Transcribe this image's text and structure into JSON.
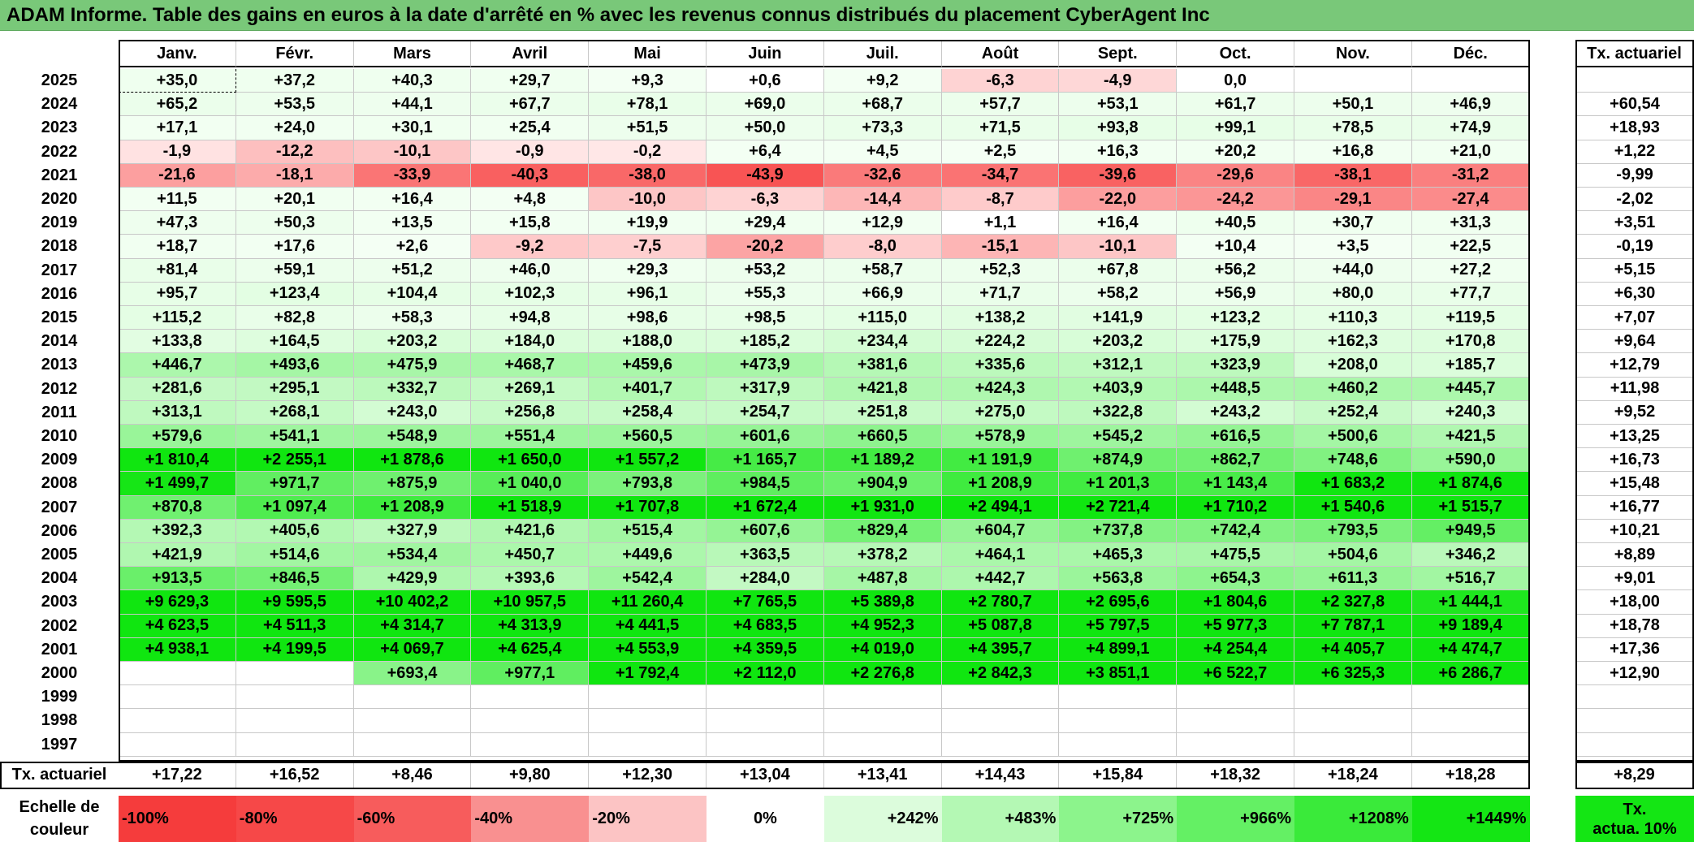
{
  "title": "ADAM Informe. Table des gains en euros à la date d'arrêté en % avec les revenus connus distribués du placement CyberAgent Inc",
  "chart_data": {
    "type": "table",
    "columns": [
      "Janv.",
      "Févr.",
      "Mars",
      "Avril",
      "Mai",
      "Juin",
      "Juil.",
      "Août",
      "Sept.",
      "Oct.",
      "Nov.",
      "Déc."
    ],
    "annual_header": "Tx. actuariel",
    "rows": [
      {
        "year": "2025",
        "values": [
          "+35,0",
          "+37,2",
          "+40,3",
          "+29,7",
          "+9,3",
          "+0,6",
          "+9,2",
          "-6,3",
          "-4,9",
          "0,0",
          "",
          ""
        ],
        "annual": ""
      },
      {
        "year": "2024",
        "values": [
          "+65,2",
          "+53,5",
          "+44,1",
          "+67,7",
          "+78,1",
          "+69,0",
          "+68,7",
          "+57,7",
          "+53,1",
          "+61,7",
          "+50,1",
          "+46,9"
        ],
        "annual": "+60,54"
      },
      {
        "year": "2023",
        "values": [
          "+17,1",
          "+24,0",
          "+30,1",
          "+25,4",
          "+51,5",
          "+50,0",
          "+73,3",
          "+71,5",
          "+93,8",
          "+99,1",
          "+78,5",
          "+74,9"
        ],
        "annual": "+18,93"
      },
      {
        "year": "2022",
        "values": [
          "-1,9",
          "-12,2",
          "-10,1",
          "-0,9",
          "-0,2",
          "+6,4",
          "+4,5",
          "+2,5",
          "+16,3",
          "+20,2",
          "+16,8",
          "+21,0"
        ],
        "annual": "+1,22"
      },
      {
        "year": "2021",
        "values": [
          "-21,6",
          "-18,1",
          "-33,9",
          "-40,3",
          "-38,0",
          "-43,9",
          "-32,6",
          "-34,7",
          "-39,6",
          "-29,6",
          "-38,1",
          "-31,2"
        ],
        "annual": "-9,99"
      },
      {
        "year": "2020",
        "values": [
          "+11,5",
          "+20,1",
          "+16,4",
          "+4,8",
          "-10,0",
          "-6,3",
          "-14,4",
          "-8,7",
          "-22,0",
          "-24,2",
          "-29,1",
          "-27,4"
        ],
        "annual": "-2,02"
      },
      {
        "year": "2019",
        "values": [
          "+47,3",
          "+50,3",
          "+13,5",
          "+15,8",
          "+19,9",
          "+29,4",
          "+12,9",
          "+1,1",
          "+16,4",
          "+40,5",
          "+30,7",
          "+31,3"
        ],
        "annual": "+3,51"
      },
      {
        "year": "2018",
        "values": [
          "+18,7",
          "+17,6",
          "+2,6",
          "-9,2",
          "-7,5",
          "-20,2",
          "-8,0",
          "-15,1",
          "-10,1",
          "+10,4",
          "+3,5",
          "+22,5"
        ],
        "annual": "-0,19"
      },
      {
        "year": "2017",
        "values": [
          "+81,4",
          "+59,1",
          "+51,2",
          "+46,0",
          "+29,3",
          "+53,2",
          "+58,7",
          "+52,3",
          "+67,8",
          "+56,2",
          "+44,0",
          "+27,2"
        ],
        "annual": "+5,15"
      },
      {
        "year": "2016",
        "values": [
          "+95,7",
          "+123,4",
          "+104,4",
          "+102,3",
          "+96,1",
          "+55,3",
          "+66,9",
          "+71,7",
          "+58,2",
          "+56,9",
          "+80,0",
          "+77,7"
        ],
        "annual": "+6,30"
      },
      {
        "year": "2015",
        "values": [
          "+115,2",
          "+82,8",
          "+58,3",
          "+94,8",
          "+98,6",
          "+98,5",
          "+115,0",
          "+138,2",
          "+141,9",
          "+123,2",
          "+110,3",
          "+119,5"
        ],
        "annual": "+7,07"
      },
      {
        "year": "2014",
        "values": [
          "+133,8",
          "+164,5",
          "+203,2",
          "+184,0",
          "+188,0",
          "+185,2",
          "+234,4",
          "+224,2",
          "+203,2",
          "+175,9",
          "+162,3",
          "+170,8"
        ],
        "annual": "+9,64"
      },
      {
        "year": "2013",
        "values": [
          "+446,7",
          "+493,6",
          "+475,9",
          "+468,7",
          "+459,6",
          "+473,9",
          "+381,6",
          "+335,6",
          "+312,1",
          "+323,9",
          "+208,0",
          "+185,7"
        ],
        "annual": "+12,79"
      },
      {
        "year": "2012",
        "values": [
          "+281,6",
          "+295,1",
          "+332,7",
          "+269,1",
          "+401,7",
          "+317,9",
          "+421,8",
          "+424,3",
          "+403,9",
          "+448,5",
          "+460,2",
          "+445,7"
        ],
        "annual": "+11,98"
      },
      {
        "year": "2011",
        "values": [
          "+313,1",
          "+268,1",
          "+243,0",
          "+256,8",
          "+258,4",
          "+254,7",
          "+251,8",
          "+275,0",
          "+322,8",
          "+243,2",
          "+252,4",
          "+240,3"
        ],
        "annual": "+9,52"
      },
      {
        "year": "2010",
        "values": [
          "+579,6",
          "+541,1",
          "+548,9",
          "+551,4",
          "+560,5",
          "+601,6",
          "+660,5",
          "+578,9",
          "+545,2",
          "+616,5",
          "+500,6",
          "+421,5"
        ],
        "annual": "+13,25"
      },
      {
        "year": "2009",
        "values": [
          "+1 810,4",
          "+2 255,1",
          "+1 878,6",
          "+1 650,0",
          "+1 557,2",
          "+1 165,7",
          "+1 189,2",
          "+1 191,9",
          "+874,9",
          "+862,7",
          "+748,6",
          "+590,0"
        ],
        "annual": "+16,73"
      },
      {
        "year": "2008",
        "values": [
          "+1 499,7",
          "+971,7",
          "+875,9",
          "+1 040,0",
          "+793,8",
          "+984,5",
          "+904,9",
          "+1 208,9",
          "+1 201,3",
          "+1 143,4",
          "+1 683,2",
          "+1 874,6"
        ],
        "annual": "+15,48"
      },
      {
        "year": "2007",
        "values": [
          "+870,8",
          "+1 097,4",
          "+1 208,9",
          "+1 518,9",
          "+1 707,8",
          "+1 672,4",
          "+1 931,0",
          "+2 494,1",
          "+2 721,4",
          "+1 710,2",
          "+1 540,6",
          "+1 515,7"
        ],
        "annual": "+16,77"
      },
      {
        "year": "2006",
        "values": [
          "+392,3",
          "+405,6",
          "+327,9",
          "+421,6",
          "+515,4",
          "+607,6",
          "+829,4",
          "+604,7",
          "+737,8",
          "+742,4",
          "+793,5",
          "+949,5"
        ],
        "annual": "+10,21"
      },
      {
        "year": "2005",
        "values": [
          "+421,9",
          "+514,6",
          "+534,4",
          "+450,7",
          "+449,6",
          "+363,5",
          "+378,2",
          "+464,1",
          "+465,3",
          "+475,5",
          "+504,6",
          "+346,2"
        ],
        "annual": "+8,89"
      },
      {
        "year": "2004",
        "values": [
          "+913,5",
          "+846,5",
          "+429,9",
          "+393,6",
          "+542,4",
          "+284,0",
          "+487,8",
          "+442,7",
          "+563,8",
          "+654,3",
          "+611,3",
          "+516,7"
        ],
        "annual": "+9,01"
      },
      {
        "year": "2003",
        "values": [
          "+9 629,3",
          "+9 595,5",
          "+10 402,2",
          "+10 957,5",
          "+11 260,4",
          "+7 765,5",
          "+5 389,8",
          "+2 780,7",
          "+2 695,6",
          "+1 804,6",
          "+2 327,8",
          "+1 444,1"
        ],
        "annual": "+18,00"
      },
      {
        "year": "2002",
        "values": [
          "+4 623,5",
          "+4 511,3",
          "+4 314,7",
          "+4 313,9",
          "+4 441,5",
          "+4 683,5",
          "+4 952,3",
          "+5 087,8",
          "+5 797,5",
          "+5 977,3",
          "+7 787,1",
          "+9 189,4"
        ],
        "annual": "+18,78"
      },
      {
        "year": "2001",
        "values": [
          "+4 938,1",
          "+4 199,5",
          "+4 069,7",
          "+4 625,4",
          "+4 553,9",
          "+4 359,5",
          "+4 019,0",
          "+4 395,7",
          "+4 899,1",
          "+4 254,4",
          "+4 405,7",
          "+4 474,7"
        ],
        "annual": "+17,36"
      },
      {
        "year": "2000",
        "values": [
          "",
          "",
          "+693,4",
          "+977,1",
          "+1 792,4",
          "+2 112,0",
          "+2 276,8",
          "+2 842,3",
          "+3 851,1",
          "+6 522,7",
          "+6 325,3",
          "+6 286,7"
        ],
        "annual": "+12,90"
      },
      {
        "year": "1999",
        "values": [
          "",
          "",
          "",
          "",
          "",
          "",
          "",
          "",
          "",
          "",
          "",
          ""
        ],
        "annual": ""
      },
      {
        "year": "1998",
        "values": [
          "",
          "",
          "",
          "",
          "",
          "",
          "",
          "",
          "",
          "",
          "",
          ""
        ],
        "annual": ""
      },
      {
        "year": "1997",
        "values": [
          "",
          "",
          "",
          "",
          "",
          "",
          "",
          "",
          "",
          "",
          "",
          ""
        ],
        "annual": ""
      }
    ],
    "footer": {
      "label": "Tx. actuariel",
      "values": [
        "+17,22",
        "+16,52",
        "+8,46",
        "+9,80",
        "+12,30",
        "+13,04",
        "+13,41",
        "+14,43",
        "+15,84",
        "+18,32",
        "+18,24",
        "+18,28"
      ],
      "annual": "+8,29"
    },
    "legend": {
      "label_line1": "Echelle de",
      "label_line2": "couleur",
      "items": [
        {
          "text": "-100%",
          "value": -100,
          "color": "#f53c3c",
          "align": "left"
        },
        {
          "text": "-80%",
          "value": -80,
          "color": "#f64848",
          "align": "left"
        },
        {
          "text": "-60%",
          "value": -60,
          "color": "#f75c5c",
          "align": "left"
        },
        {
          "text": "-40%",
          "value": -40,
          "color": "#f99090",
          "align": "left"
        },
        {
          "text": "-20%",
          "value": -20,
          "color": "#fcc4c4",
          "align": "left"
        },
        {
          "text": "0%",
          "value": 0,
          "color": "#ffffff",
          "align": "center"
        },
        {
          "text": "+242%",
          "value": 242,
          "color": "#dcfcdc",
          "align": "right"
        },
        {
          "text": "+483%",
          "value": 483,
          "color": "#b4f8b4",
          "align": "right"
        },
        {
          "text": "+725%",
          "value": 725,
          "color": "#8cf48c",
          "align": "right"
        },
        {
          "text": "+966%",
          "value": 966,
          "color": "#64f064",
          "align": "right"
        },
        {
          "text": "+1208%",
          "value": 1208,
          "color": "#3aea3a",
          "align": "right"
        },
        {
          "text": "+1449%",
          "value": 1449,
          "color": "#14e614",
          "align": "right"
        }
      ],
      "target_line1": "Tx.",
      "target_line2": "actua. 10%",
      "target_color": "#14e614"
    }
  }
}
